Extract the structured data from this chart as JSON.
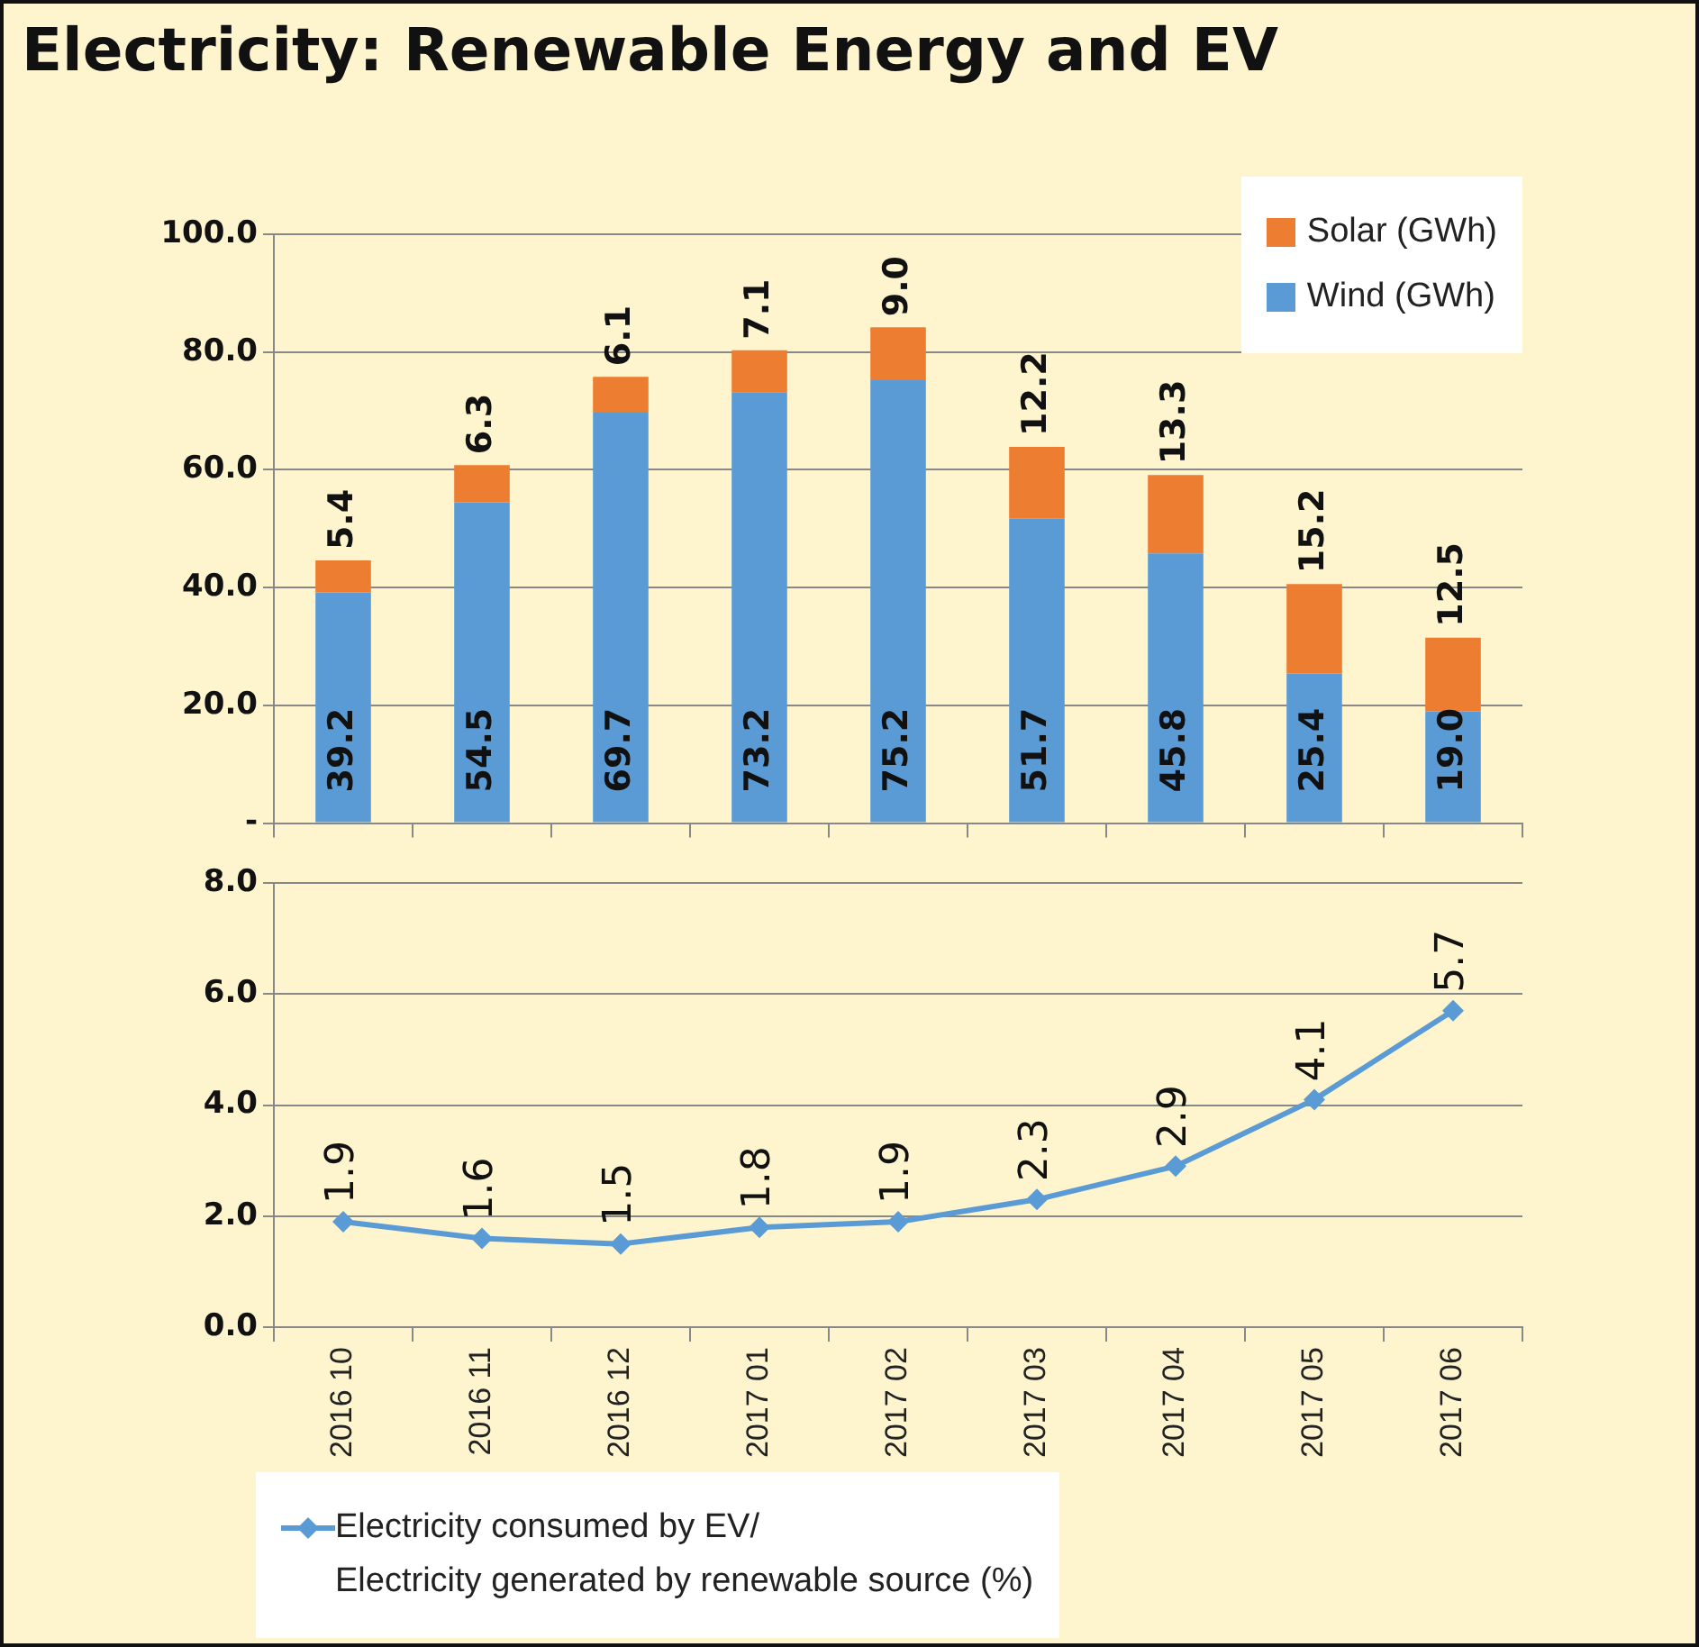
{
  "chart_data": [
    {
      "type": "bar",
      "title": "Electricity: Renewable Energy and EV",
      "stacked": true,
      "categories": [
        "2016 10",
        "2016 11",
        "2016 12",
        "2017 01",
        "2017 02",
        "2017 03",
        "2017 04",
        "2017 05",
        "2017 06"
      ],
      "series": [
        {
          "name": "Wind (GWh)",
          "color": "#5b9bd5",
          "values": [
            39.2,
            54.5,
            69.7,
            73.2,
            75.2,
            51.7,
            45.8,
            25.4,
            19.0
          ],
          "value_labels": [
            "39.2",
            "54.5",
            "69.7",
            "73.2",
            "75.2",
            "51.7",
            "45.8",
            "25.4",
            "19.0"
          ]
        },
        {
          "name": "Solar (GWh)",
          "color": "#ed7d31",
          "values": [
            5.4,
            6.3,
            6.1,
            7.1,
            9.0,
            12.2,
            13.3,
            15.2,
            12.5
          ],
          "value_labels": [
            "5.4",
            "6.3",
            "6.1",
            "7.1",
            "9.0",
            "12.2",
            "13.3",
            "15.2",
            "12.5"
          ]
        }
      ],
      "ylim": [
        0,
        100
      ],
      "yticks": [
        {
          "value": 0,
          "label": "-"
        },
        {
          "value": 20,
          "label": "20.0"
        },
        {
          "value": 40,
          "label": "40.0"
        },
        {
          "value": 60,
          "label": "60.0"
        },
        {
          "value": 80,
          "label": "80.0"
        },
        {
          "value": 100,
          "label": "100.0"
        }
      ],
      "grid": "y",
      "legend": "top right",
      "tick_labels": "y"
    },
    {
      "type": "line",
      "categories": [
        "2016 10",
        "2016 11",
        "2016 12",
        "2017 01",
        "2017 02",
        "2017 03",
        "2017 04",
        "2017 05",
        "2017 06"
      ],
      "series": [
        {
          "name": "Electricity consumed by EV/\nElectricity generated by renewable source (%)",
          "color": "#5b9bd5",
          "values": [
            1.9,
            1.6,
            1.5,
            1.8,
            1.9,
            2.3,
            2.9,
            4.1,
            5.7
          ],
          "value_labels": [
            "1.9",
            "1.6",
            "1.5",
            "1.8",
            "1.9",
            "2.3",
            "2.9",
            "4.1",
            "5.7"
          ]
        }
      ],
      "ylim": [
        0,
        8
      ],
      "yticks": [
        {
          "value": 0,
          "label": "0.0"
        },
        {
          "value": 2,
          "label": "2.0"
        },
        {
          "value": 4,
          "label": "4.0"
        },
        {
          "value": 6,
          "label": "6.0"
        },
        {
          "value": 8,
          "label": "8.0"
        }
      ],
      "grid": "y",
      "legend": "bottom",
      "marker": "diamond"
    }
  ]
}
